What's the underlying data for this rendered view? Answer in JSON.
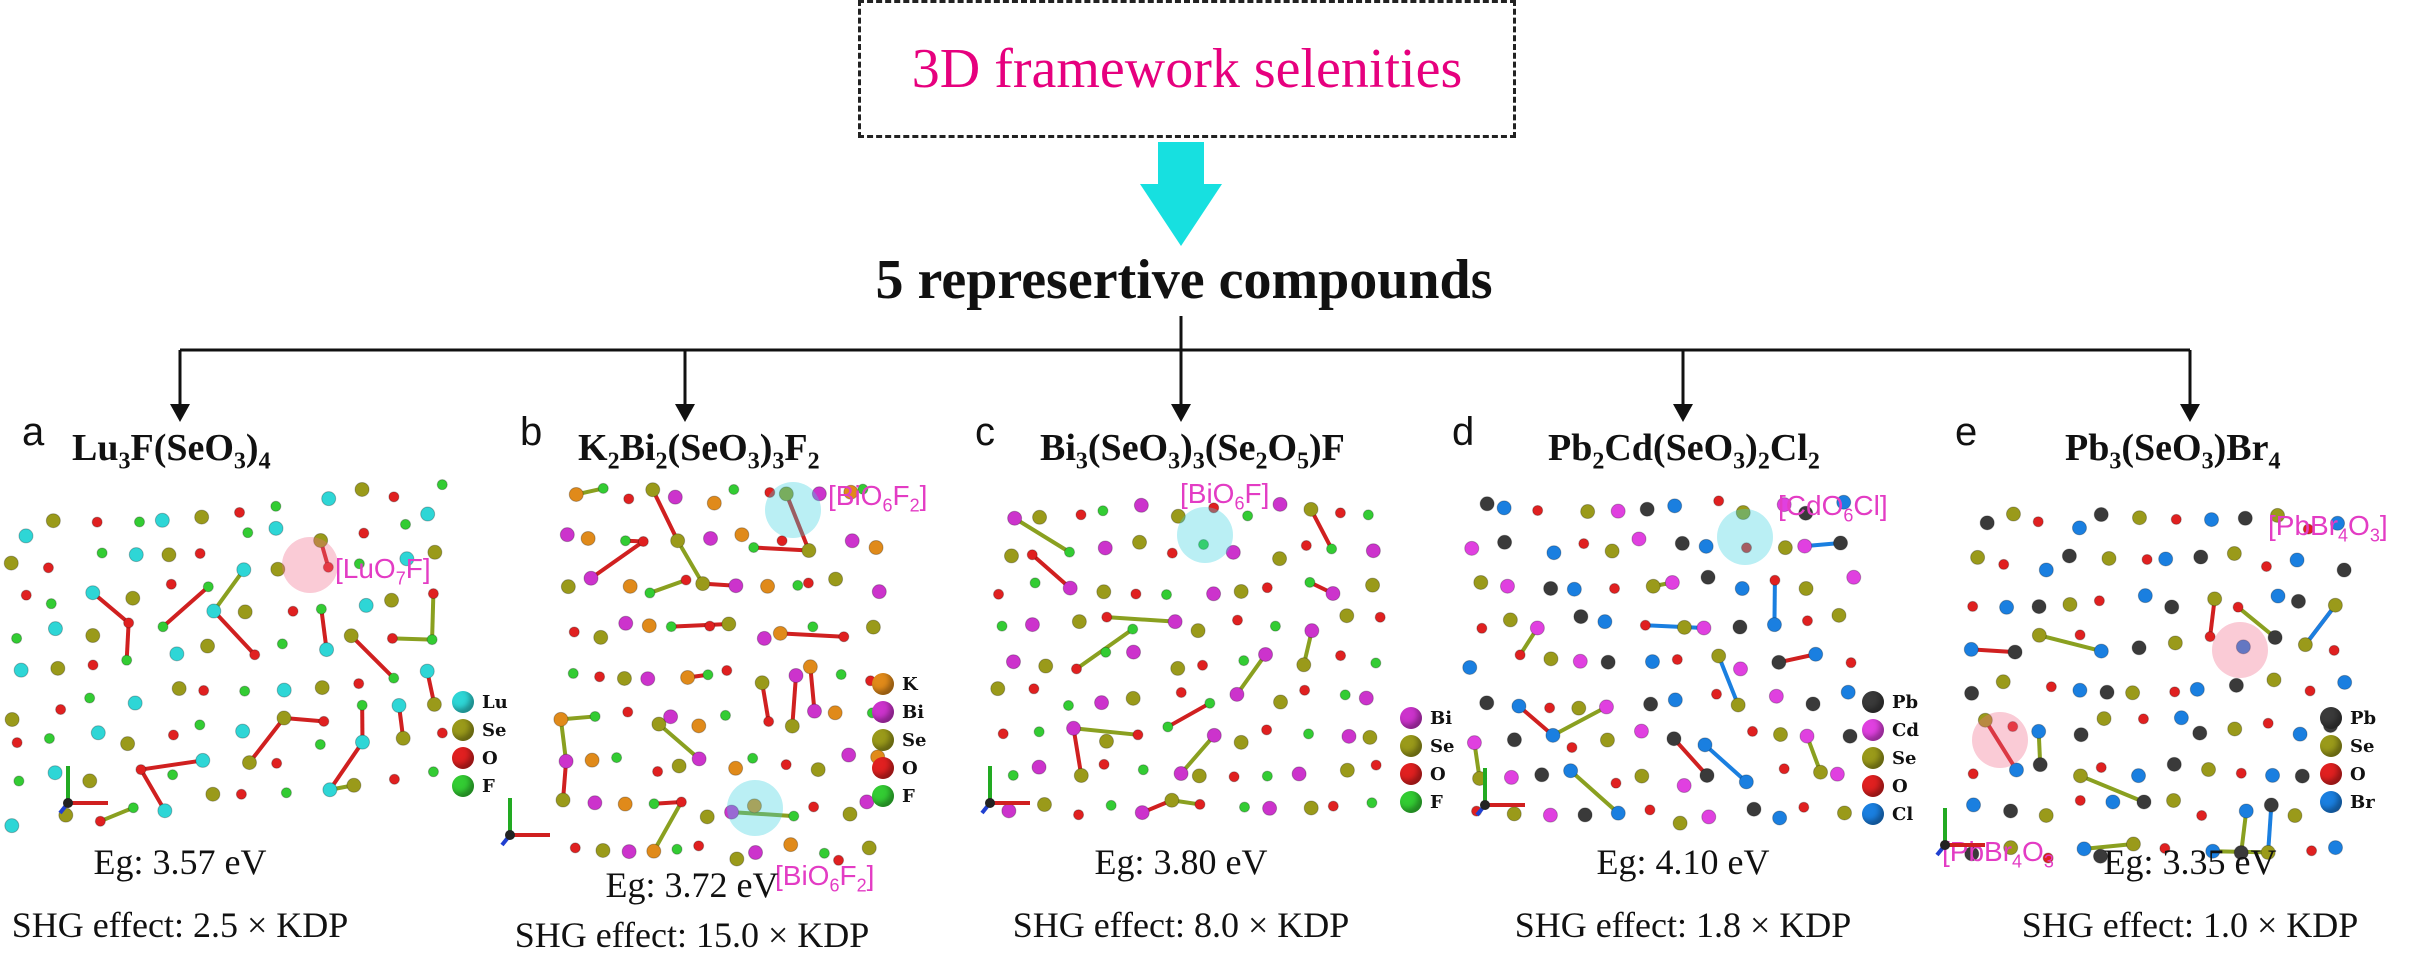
{
  "title": "3D framework selenities",
  "subtitle": "5 represertive compounds",
  "colors": {
    "title": "#e6007e",
    "arrow": "#17e0e0",
    "tag": "#e33cc4"
  },
  "panels": [
    {
      "letter": "a",
      "formula": {
        "parts": [
          [
            "Lu",
            ""
          ],
          [
            "3",
            "sub"
          ],
          [
            "F(SeO",
            ""
          ],
          [
            "3",
            "sub"
          ],
          [
            ")",
            ""
          ],
          [
            "4",
            "sub"
          ]
        ]
      },
      "tags": [
        {
          "parts": [
            [
              "[LuO",
              ""
            ],
            [
              "7",
              "sub"
            ],
            [
              "F]",
              ""
            ]
          ]
        }
      ],
      "legend": [
        [
          "Lu",
          "#2ed6d6"
        ],
        [
          "Se",
          "#9a9a1a"
        ],
        [
          "O",
          "#e02020"
        ],
        [
          "F",
          "#33cc33"
        ]
      ],
      "eg": "Eg: 3.57 eV",
      "shg": "SHG effect: 2.5 × KDP"
    },
    {
      "letter": "b",
      "formula": {
        "parts": [
          [
            "K",
            ""
          ],
          [
            "2",
            "sub"
          ],
          [
            "Bi",
            ""
          ],
          [
            "2",
            "sub"
          ],
          [
            "(SeO",
            ""
          ],
          [
            "3",
            "sub"
          ],
          [
            ")",
            ""
          ],
          [
            "3",
            "sub"
          ],
          [
            "F",
            ""
          ],
          [
            "2",
            "sub"
          ]
        ]
      },
      "tags": [
        {
          "parts": [
            [
              "[BiO",
              ""
            ],
            [
              "6",
              "sub"
            ],
            [
              "F",
              ""
            ],
            [
              "2",
              "sub"
            ],
            [
              "]",
              ""
            ]
          ]
        },
        {
          "parts": [
            [
              "[BiO",
              ""
            ],
            [
              "6",
              "sub"
            ],
            [
              "F",
              ""
            ],
            [
              "2",
              "sub"
            ],
            [
              "]",
              ""
            ]
          ]
        }
      ],
      "legend": [
        [
          "K",
          "#e08a1a"
        ],
        [
          "Bi",
          "#cc33cc"
        ],
        [
          "Se",
          "#9a9a1a"
        ],
        [
          "O",
          "#e02020"
        ],
        [
          "F",
          "#33cc33"
        ]
      ],
      "eg": "Eg: 3.72 eV",
      "shg": "SHG effect: 15.0 × KDP"
    },
    {
      "letter": "c",
      "formula": {
        "parts": [
          [
            "Bi",
            ""
          ],
          [
            "3",
            "sub"
          ],
          [
            "(SeO",
            ""
          ],
          [
            "3",
            "sub"
          ],
          [
            ")",
            ""
          ],
          [
            "3",
            "sub"
          ],
          [
            "(Se",
            ""
          ],
          [
            "2",
            "sub"
          ],
          [
            "O",
            ""
          ],
          [
            "5",
            "sub"
          ],
          [
            ")F",
            ""
          ]
        ]
      },
      "tags": [
        {
          "parts": [
            [
              "[BiO",
              ""
            ],
            [
              "6",
              "sub"
            ],
            [
              "F]",
              ""
            ]
          ]
        }
      ],
      "legend": [
        [
          "Bi",
          "#cc33cc"
        ],
        [
          "Se",
          "#9a9a1a"
        ],
        [
          "O",
          "#e02020"
        ],
        [
          "F",
          "#33cc33"
        ]
      ],
      "eg": "Eg: 3.80 eV",
      "shg": "SHG effect: 8.0 × KDP"
    },
    {
      "letter": "d",
      "formula": {
        "parts": [
          [
            "Pb",
            ""
          ],
          [
            "2",
            "sub"
          ],
          [
            "Cd(SeO",
            ""
          ],
          [
            "3",
            "sub"
          ],
          [
            ")",
            ""
          ],
          [
            "2",
            "sub"
          ],
          [
            "Cl",
            ""
          ],
          [
            "2",
            "sub"
          ]
        ]
      },
      "tags": [
        {
          "parts": [
            [
              "[CdO",
              ""
            ],
            [
              "6",
              "sub"
            ],
            [
              "Cl]",
              ""
            ]
          ]
        }
      ],
      "legend": [
        [
          "Pb",
          "#3a3a3a"
        ],
        [
          "Cd",
          "#e040e0"
        ],
        [
          "Se",
          "#9a9a1a"
        ],
        [
          "O",
          "#e02020"
        ],
        [
          "Cl",
          "#1a7fe0"
        ]
      ],
      "eg": "Eg: 4.10 eV",
      "shg": "SHG effect: 1.8 × KDP"
    },
    {
      "letter": "e",
      "formula": {
        "parts": [
          [
            "Pb",
            ""
          ],
          [
            "3",
            "sub"
          ],
          [
            "(SeO",
            ""
          ],
          [
            "3",
            "sub"
          ],
          [
            ")Br",
            ""
          ],
          [
            "4",
            "sub"
          ]
        ]
      },
      "tags": [
        {
          "parts": [
            [
              "[PbBr",
              ""
            ],
            [
              "4",
              "sub"
            ],
            [
              "O",
              ""
            ],
            [
              "3",
              "sub"
            ],
            [
              "]",
              ""
            ]
          ]
        },
        {
          "parts": [
            [
              "[PbBr",
              ""
            ],
            [
              "4",
              "sub"
            ],
            [
              "O",
              ""
            ],
            [
              "3",
              "sub"
            ]
          ]
        }
      ],
      "legend": [
        [
          "Pb",
          "#3a3a3a"
        ],
        [
          "Se",
          "#9a9a1a"
        ],
        [
          "O",
          "#e02020"
        ],
        [
          "Br",
          "#1a7fe0"
        ]
      ],
      "eg": "Eg: 3.35 eV",
      "shg": "SHG effect: 1.0 × KDP"
    }
  ]
}
